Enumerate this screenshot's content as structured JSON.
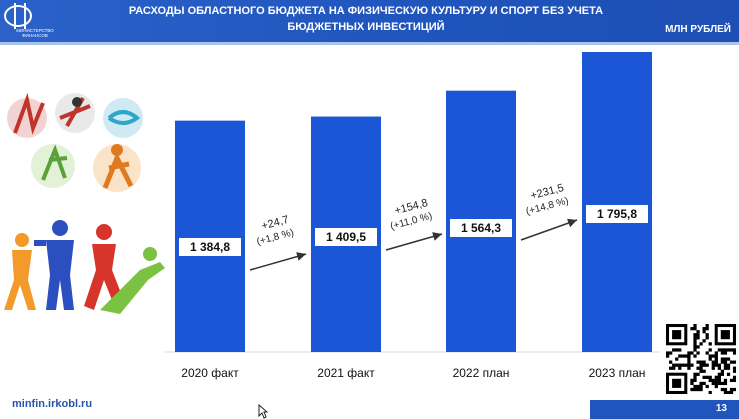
{
  "header": {
    "logo_text": "МИНИСТЕРСТВО ФИНАНСОВ",
    "title_line1": "РАСХОДЫ ОБЛАСТНОГО БЮДЖЕТА НА ФИЗИЧЕСКУЮ КУЛЬТУРУ И СПОРТ БЕЗ УЧЕТА",
    "title_line2": "БЮДЖЕТНЫХ ИНВЕСТИЦИЙ",
    "unit": "МЛН РУБЛЕЙ"
  },
  "chart_data": {
    "type": "bar",
    "categories": [
      "2020 факт",
      "2021 факт",
      "2022 план",
      "2023 план"
    ],
    "values": [
      1384.8,
      1409.5,
      1564.3,
      1795.8
    ],
    "value_labels": [
      "1 384,8",
      "1 409,5",
      "1 564,3",
      "1 795,8"
    ],
    "changes": [
      {
        "abs": "+24,7",
        "pct": "(+1,8 %)"
      },
      {
        "abs": "+154,8",
        "pct": "(+11,0 %)"
      },
      {
        "abs": "+231,5",
        "pct": "(+14,8 %)"
      }
    ],
    "bar_color": "#1a56d6",
    "title": "",
    "xlabel": "",
    "ylabel": "",
    "grid": false,
    "legend": "none"
  },
  "footer": {
    "url": "minfin.irkobl.ru",
    "page": "13"
  },
  "colors": {
    "header": "#1f55bd",
    "accent": "#1a56d6"
  }
}
